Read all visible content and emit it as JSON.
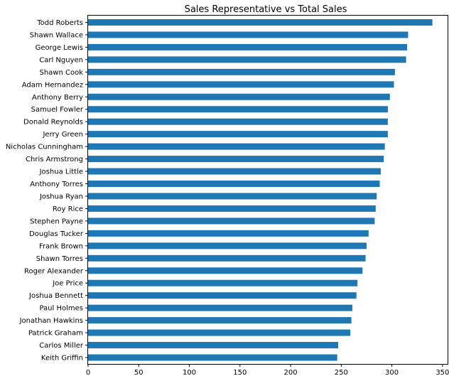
{
  "chart_data": {
    "type": "bar",
    "orientation": "horizontal",
    "title": "Sales Representative vs Total Sales",
    "xlabel": "",
    "ylabel": "",
    "xlim": [
      0,
      355
    ],
    "x_ticks": [
      0,
      50,
      100,
      150,
      200,
      250,
      300,
      350
    ],
    "grid": false,
    "bar_color": "#1f77b4",
    "categories": [
      "Todd Roberts",
      "Shawn Wallace",
      "George Lewis",
      "Carl Nguyen",
      "Shawn Cook",
      "Adam Hernandez",
      "Anthony Berry",
      "Samuel Fowler",
      "Donald Reynolds",
      "Jerry Green",
      "Nicholas Cunningham",
      "Chris Armstrong",
      "Joshua Little",
      "Anthony Torres",
      "Joshua Ryan",
      "Roy Rice",
      "Stephen Payne",
      "Douglas Tucker",
      "Frank Brown",
      "Shawn Torres",
      "Roger Alexander",
      "Joe Price",
      "Joshua Bennett",
      "Paul Holmes",
      "Jonathan Hawkins",
      "Patrick Graham",
      "Carlos Miller",
      "Keith Griffin"
    ],
    "values": [
      340,
      316,
      315,
      314,
      303,
      302,
      298,
      296,
      296,
      296,
      293,
      292,
      289,
      288,
      285,
      284,
      283,
      277,
      275,
      274,
      271,
      266,
      265,
      261,
      260,
      259,
      247,
      246
    ]
  }
}
